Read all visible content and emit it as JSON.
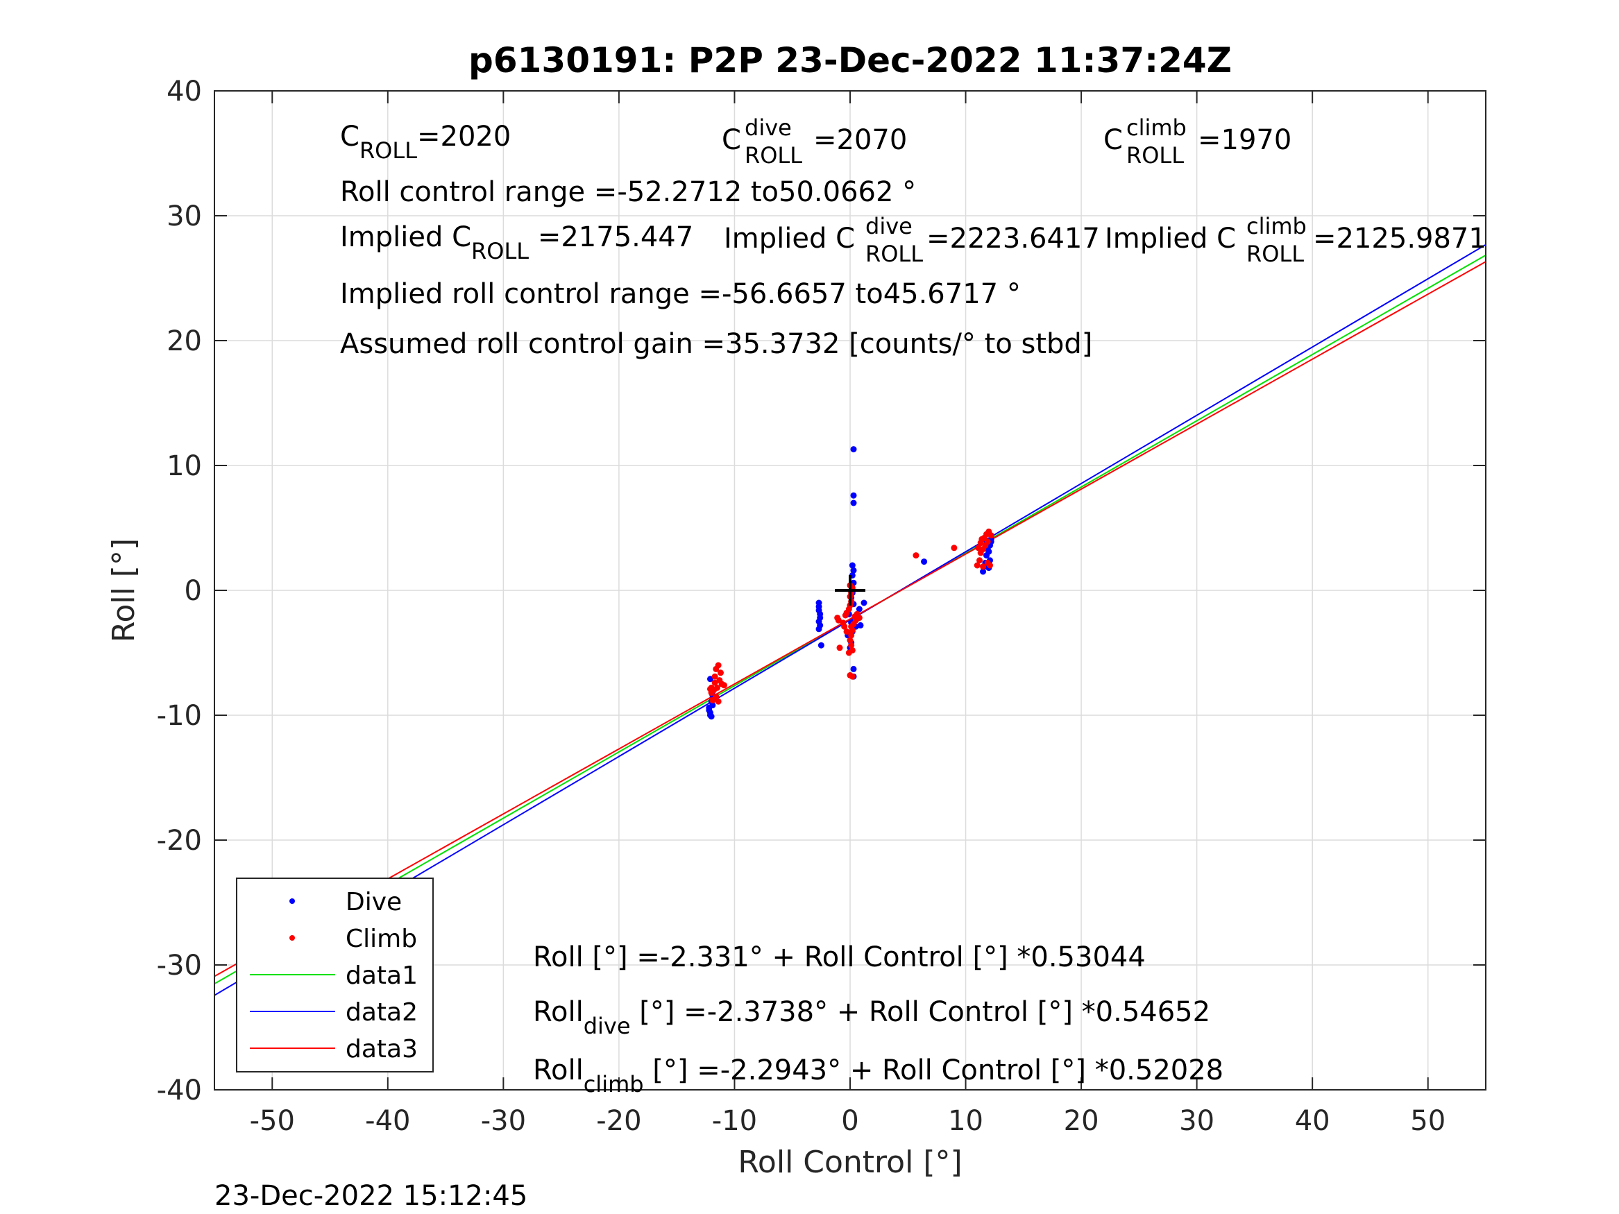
{
  "chart_data": {
    "type": "scatter",
    "title": "p6130191: P2P 23-Dec-2022 11:37:24Z",
    "xlabel": "Roll Control [°]",
    "ylabel": "Roll [°]",
    "xlim": [
      -55,
      55
    ],
    "ylim": [
      -40,
      40
    ],
    "xticks": [
      -50,
      -40,
      -30,
      -20,
      -10,
      0,
      10,
      20,
      30,
      40,
      50
    ],
    "yticks": [
      -40,
      -30,
      -20,
      -10,
      0,
      10,
      20,
      30,
      40
    ],
    "grid": true,
    "legend_position": "bottom-left",
    "legend": [
      "Dive",
      "Climb",
      "data1",
      "data2",
      "data3"
    ],
    "timestamp": "23-Dec-2022 15:12:45",
    "colors": {
      "dive": "#0000ff",
      "climb": "#ff0000",
      "data1": "#00e000",
      "data2": "#0000ff",
      "data3": "#ff0000",
      "marker": "#000000"
    },
    "lines": [
      {
        "name": "data1",
        "intercept": -2.331,
        "slope": 0.53044
      },
      {
        "name": "data2",
        "intercept": -2.3738,
        "slope": 0.54652
      },
      {
        "name": "data3",
        "intercept": -2.2943,
        "slope": 0.52028
      }
    ],
    "center_marker": {
      "x": 0,
      "y": 0
    },
    "dive_points": [
      [
        -12.2,
        -9.4
      ],
      [
        -12.2,
        -9.6
      ],
      [
        -12.1,
        -9.8
      ],
      [
        -12.0,
        -10.1
      ],
      [
        -12.1,
        -10.0
      ],
      [
        -11.9,
        -9.2
      ],
      [
        -12.0,
        -8.9
      ],
      [
        -11.9,
        -8.4
      ],
      [
        -12.1,
        -7.1
      ],
      [
        -11.8,
        -8.0
      ],
      [
        -2.7,
        -1.0
      ],
      [
        -2.7,
        -1.3
      ],
      [
        -2.7,
        -1.6
      ],
      [
        -2.6,
        -1.9
      ],
      [
        -2.6,
        -2.2
      ],
      [
        -2.7,
        -2.5
      ],
      [
        -2.6,
        -2.8
      ],
      [
        -2.7,
        -3.1
      ],
      [
        -2.5,
        -4.4
      ],
      [
        0.3,
        11.3
      ],
      [
        0.3,
        7.6
      ],
      [
        0.3,
        7.0
      ],
      [
        0.2,
        2.0
      ],
      [
        0.3,
        1.6
      ],
      [
        0.2,
        1.2
      ],
      [
        0.3,
        0.6
      ],
      [
        0.2,
        -0.2
      ],
      [
        0.1,
        -0.6
      ],
      [
        0.3,
        -1.1
      ],
      [
        -0.1,
        -1.9
      ],
      [
        0.4,
        -2.2
      ],
      [
        0.1,
        -2.6
      ],
      [
        0.5,
        -2.9
      ],
      [
        0.2,
        -3.3
      ],
      [
        -0.2,
        -3.6
      ],
      [
        0.1,
        -4.2
      ],
      [
        0.0,
        -4.6
      ],
      [
        0.3,
        -6.3
      ],
      [
        0.3,
        -6.9
      ],
      [
        0.8,
        -1.5
      ],
      [
        1.2,
        -1.0
      ],
      [
        0.9,
        -2.8
      ],
      [
        6.4,
        2.3
      ],
      [
        11.5,
        1.5
      ],
      [
        11.6,
        1.9
      ],
      [
        11.7,
        2.2
      ],
      [
        11.8,
        2.8
      ],
      [
        11.9,
        3.3
      ],
      [
        12.0,
        3.7
      ],
      [
        11.8,
        4.0
      ],
      [
        12.1,
        3.6
      ],
      [
        12.0,
        3.1
      ],
      [
        12.2,
        3.9
      ],
      [
        12.1,
        2.4
      ],
      [
        12.0,
        1.8
      ],
      [
        12.2,
        4.1
      ]
    ],
    "climb_points": [
      [
        -11.4,
        -6.0
      ],
      [
        -11.6,
        -6.3
      ],
      [
        -11.2,
        -6.6
      ],
      [
        -11.7,
        -6.9
      ],
      [
        -11.3,
        -7.2
      ],
      [
        -11.1,
        -7.5
      ],
      [
        -11.5,
        -7.8
      ],
      [
        -11.8,
        -8.0
      ],
      [
        -12.0,
        -8.2
      ],
      [
        -11.6,
        -8.5
      ],
      [
        -11.9,
        -8.8
      ],
      [
        -12.1,
        -7.9
      ],
      [
        -11.4,
        -8.9
      ],
      [
        -10.9,
        -7.6
      ],
      [
        -11.7,
        -7.4
      ],
      [
        -12.0,
        -7.8
      ],
      [
        -1.1,
        -2.2
      ],
      [
        -1.0,
        -2.4
      ],
      [
        -0.6,
        -2.6
      ],
      [
        -0.4,
        -2.0
      ],
      [
        -0.3,
        -1.8
      ],
      [
        -0.1,
        -1.5
      ],
      [
        0.0,
        -1.2
      ],
      [
        0.1,
        -0.9
      ],
      [
        0.0,
        -0.5
      ],
      [
        0.1,
        -0.2
      ],
      [
        0.2,
        0.2
      ],
      [
        0.0,
        0.4
      ],
      [
        0.1,
        -2.9
      ],
      [
        0.2,
        -3.2
      ],
      [
        0.1,
        -3.6
      ],
      [
        0.0,
        -4.0
      ],
      [
        0.1,
        -4.4
      ],
      [
        0.2,
        -4.8
      ],
      [
        -0.1,
        -5.0
      ],
      [
        -0.9,
        -4.6
      ],
      [
        0.0,
        -6.8
      ],
      [
        0.2,
        -6.9
      ],
      [
        0.4,
        -2.1
      ],
      [
        0.6,
        -1.9
      ],
      [
        0.3,
        -2.7
      ],
      [
        0.5,
        -2.4
      ],
      [
        0.8,
        -2.2
      ],
      [
        -0.3,
        -3.3
      ],
      [
        -0.5,
        -2.9
      ],
      [
        5.7,
        2.8
      ],
      [
        9.0,
        3.4
      ],
      [
        11.0,
        2.0
      ],
      [
        11.2,
        2.4
      ],
      [
        11.3,
        3.0
      ],
      [
        11.5,
        3.3
      ],
      [
        11.7,
        3.6
      ],
      [
        11.9,
        3.9
      ],
      [
        11.6,
        4.2
      ],
      [
        11.8,
        4.5
      ],
      [
        12.0,
        4.7
      ],
      [
        11.4,
        4.1
      ],
      [
        11.1,
        3.4
      ],
      [
        11.9,
        2.2
      ],
      [
        12.1,
        2.0
      ],
      [
        11.5,
        1.9
      ],
      [
        11.3,
        3.8
      ],
      [
        12.2,
        4.4
      ]
    ],
    "annotations": {
      "c_roll_base": "C",
      "c_roll_sub": "ROLL",
      "c_roll_val": "=2020",
      "c_dive_base": "C",
      "c_dive_sup": "dive",
      "c_dive_sub": "ROLL",
      "c_dive_val": "=2070",
      "c_climb_base": "C",
      "c_climb_sup": "climb",
      "c_climb_sub": "ROLL",
      "c_climb_val": "=1970",
      "control_range": "Roll control range =-52.2712 to50.0662 °",
      "implied_c_roll_base": "Implied C",
      "implied_c_roll_sub": "ROLL",
      "implied_c_roll_val": " =2175.447",
      "implied_c_dive_base": "Implied C",
      "implied_c_dive_sup": "dive",
      "implied_c_dive_sub": "ROLL",
      "implied_c_dive_val": " =2223.6417",
      "implied_c_climb_base": "Implied C",
      "implied_c_climb_sup": "climb",
      "implied_c_climb_sub": "ROLL",
      "implied_c_climb_val": " =2125.9871",
      "implied_range": "Implied roll control range =-56.6657 to45.6717 °",
      "gain": "Assumed roll control gain =35.3732 [counts/° to stbd]",
      "fit_all": "Roll [°] =-2.331° + Roll Control [°] *0.53044",
      "fit_dive_base": "Roll",
      "fit_dive_sub": "dive",
      "fit_dive_rest": " [°] =-2.3738° + Roll Control [°] *0.54652",
      "fit_climb_base": "Roll",
      "fit_climb_sub": "climb",
      "fit_climb_rest": " [°] =-2.2943° + Roll Control [°] *0.52028"
    }
  }
}
